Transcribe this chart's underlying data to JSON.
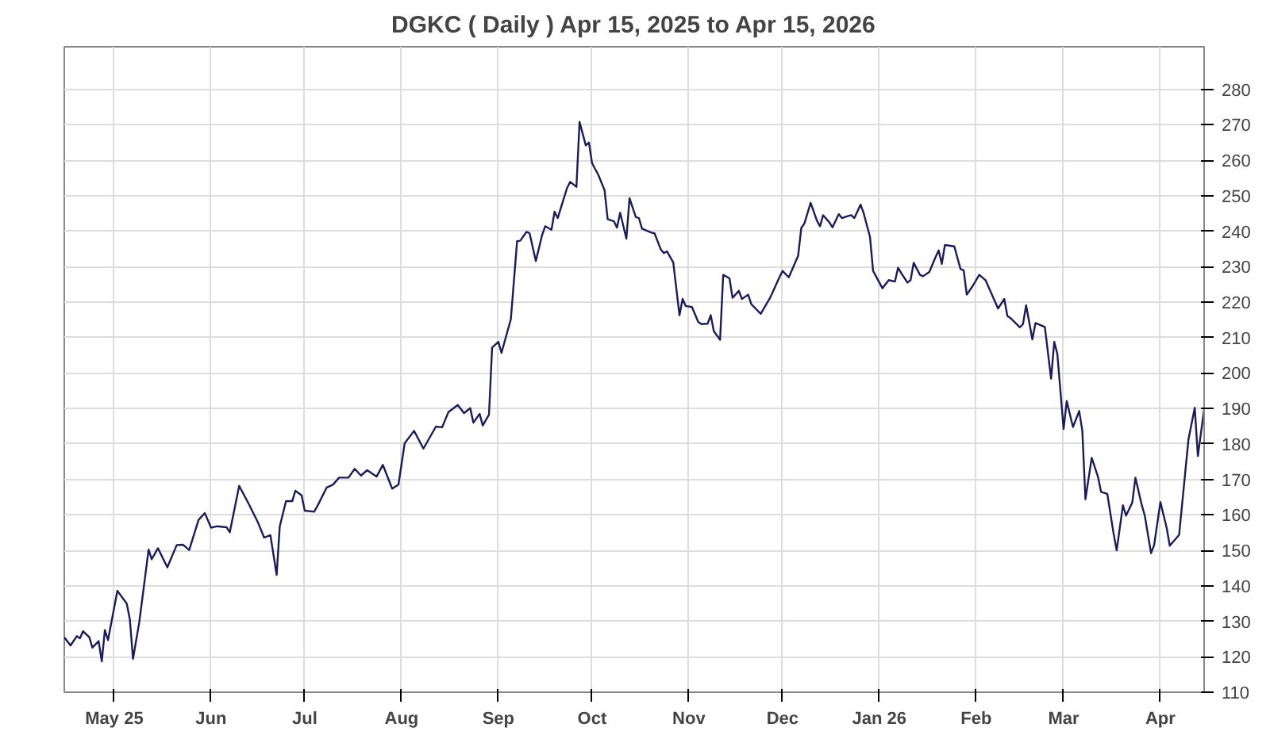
{
  "chart_data": {
    "type": "line",
    "title": "DGKC ( Daily ) Apr 15, 2025 to Apr 15, 2026",
    "x": [
      "2025-04-15",
      "2025-04-17",
      "2025-04-19",
      "2025-04-20",
      "2025-04-21",
      "2025-04-23",
      "2025-04-24",
      "2025-04-26",
      "2025-04-27",
      "2025-04-28",
      "2025-04-29",
      "2025-05-02",
      "2025-05-05",
      "2025-05-06",
      "2025-05-07",
      "2025-05-09",
      "2025-05-12",
      "2025-05-13",
      "2025-05-15",
      "2025-05-18",
      "2025-05-21",
      "2025-05-23",
      "2025-05-25",
      "2025-05-28",
      "2025-05-30",
      "2025-06-01",
      "2025-06-03",
      "2025-06-06",
      "2025-06-07",
      "2025-06-10",
      "2025-06-13",
      "2025-06-16",
      "2025-06-18",
      "2025-06-20",
      "2025-06-22",
      "2025-06-23",
      "2025-06-25",
      "2025-06-27",
      "2025-06-28",
      "2025-06-30",
      "2025-07-01",
      "2025-07-04",
      "2025-07-05",
      "2025-07-08",
      "2025-07-10",
      "2025-07-12",
      "2025-07-15",
      "2025-07-17",
      "2025-07-19",
      "2025-07-21",
      "2025-07-24",
      "2025-07-26",
      "2025-07-29",
      "2025-07-31",
      "2025-08-02",
      "2025-08-05",
      "2025-08-08",
      "2025-08-12",
      "2025-08-14",
      "2025-08-16",
      "2025-08-19",
      "2025-08-21",
      "2025-08-23",
      "2025-08-24",
      "2025-08-26",
      "2025-08-27",
      "2025-08-29",
      "2025-08-30",
      "2025-09-01",
      "2025-09-02",
      "2025-09-05",
      "2025-09-07",
      "2025-09-08",
      "2025-09-10",
      "2025-09-11",
      "2025-09-13",
      "2025-09-15",
      "2025-09-16",
      "2025-09-18",
      "2025-09-19",
      "2025-09-20",
      "2025-09-23",
      "2025-09-24",
      "2025-09-26",
      "2025-09-27",
      "2025-09-29",
      "2025-09-30",
      "2025-10-01",
      "2025-10-03",
      "2025-10-05",
      "2025-10-06",
      "2025-10-08",
      "2025-10-09",
      "2025-10-10",
      "2025-10-12",
      "2025-10-13",
      "2025-10-15",
      "2025-10-16",
      "2025-10-17",
      "2025-10-20",
      "2025-10-21",
      "2025-10-23",
      "2025-10-24",
      "2025-10-25",
      "2025-10-27",
      "2025-10-29",
      "2025-10-30",
      "2025-10-31",
      "2025-11-02",
      "2025-11-04",
      "2025-11-05",
      "2025-11-07",
      "2025-11-08",
      "2025-11-09",
      "2025-11-11",
      "2025-11-12",
      "2025-11-14",
      "2025-11-15",
      "2025-11-17",
      "2025-11-18",
      "2025-11-20",
      "2025-11-21",
      "2025-11-24",
      "2025-11-27",
      "2025-11-30",
      "2025-12-01",
      "2025-12-03",
      "2025-12-06",
      "2025-12-07",
      "2025-12-08",
      "2025-12-10",
      "2025-12-12",
      "2025-12-13",
      "2025-12-14",
      "2025-12-16",
      "2025-12-17",
      "2025-12-19",
      "2025-12-20",
      "2025-12-22",
      "2025-12-23",
      "2025-12-24",
      "2025-12-26",
      "2025-12-27",
      "2025-12-29",
      "2025-12-30",
      "2026-01-02",
      "2026-01-04",
      "2026-01-06",
      "2026-01-07",
      "2026-01-08",
      "2026-01-10",
      "2026-01-11",
      "2026-01-12",
      "2026-01-14",
      "2026-01-15",
      "2026-01-17",
      "2026-01-19",
      "2026-01-20",
      "2026-01-21",
      "2026-01-22",
      "2026-01-25",
      "2026-01-27",
      "2026-01-28",
      "2026-01-29",
      "2026-01-31",
      "2026-02-02",
      "2026-02-04",
      "2026-02-08",
      "2026-02-10",
      "2026-02-11",
      "2026-02-12",
      "2026-02-15",
      "2026-02-16",
      "2026-02-17",
      "2026-02-19",
      "2026-02-20",
      "2026-02-23",
      "2026-02-25",
      "2026-02-26",
      "2026-02-27",
      "2026-03-01",
      "2026-03-02",
      "2026-03-04",
      "2026-03-06",
      "2026-03-07",
      "2026-03-08",
      "2026-03-10",
      "2026-03-12",
      "2026-03-13",
      "2026-03-15",
      "2026-03-17",
      "2026-03-18",
      "2026-03-20",
      "2026-03-21",
      "2026-03-23",
      "2026-03-24",
      "2026-03-26",
      "2026-03-27",
      "2026-03-29",
      "2026-03-30",
      "2026-04-01",
      "2026-04-03",
      "2026-04-04",
      "2026-04-07",
      "2026-04-10",
      "2026-04-12",
      "2026-04-13",
      "2026-04-15"
    ],
    "series": [
      {
        "color": "#1c1c5c",
        "values": [
          125.5,
          123.2,
          125.8,
          125.2,
          127.2,
          125.5,
          122.6,
          124.4,
          118.7,
          127.5,
          124.7,
          138.6,
          135,
          130.5,
          119.4,
          129.7,
          150.2,
          147.5,
          150.6,
          145.2,
          151.5,
          151.6,
          150.1,
          158.6,
          160.5,
          156.4,
          156.8,
          156.5,
          155.1,
          168.2,
          163.2,
          157.9,
          153.6,
          154.3,
          143.1,
          156.8,
          163.9,
          163.9,
          166.8,
          165.5,
          161.2,
          160.9,
          162.4,
          167.7,
          168.5,
          170.5,
          170.5,
          173,
          171.1,
          172.6,
          170.8,
          174.1,
          167.4,
          168.5,
          180.2,
          183.7,
          178.7,
          184.9,
          184.7,
          189,
          191,
          188.7,
          190.1,
          186,
          188.5,
          185.2,
          188.3,
          207.2,
          208.8,
          205.7,
          215.2,
          237.2,
          237.3,
          239.8,
          239.4,
          231.6,
          238.9,
          241.4,
          240.4,
          245.5,
          243.7,
          252.2,
          253.9,
          252.5,
          270.8,
          264.2,
          265,
          259.2,
          255.9,
          251.6,
          243.4,
          242.8,
          241,
          245.2,
          237.9,
          249.3,
          244,
          243.7,
          240.7,
          239.6,
          239.4,
          234.9,
          233.8,
          234.3,
          231.2,
          216.3,
          220.9,
          218.9,
          218.6,
          214.4,
          213.8,
          213.9,
          216.3,
          211.8,
          209.4,
          227.7,
          226.7,
          221.2,
          223.2,
          220.9,
          222.1,
          219.4,
          216.7,
          221.2,
          227,
          228.8,
          227,
          233.1,
          240.9,
          242.2,
          248,
          243,
          241.4,
          244.5,
          242.5,
          241.1,
          244.8,
          243.7,
          244.3,
          244.5,
          243.7,
          247.5,
          245,
          238.4,
          228.8,
          223.9,
          226.2,
          225.8,
          229.7,
          228.2,
          225.5,
          226.2,
          231.1,
          227.7,
          227.3,
          228.5,
          232.7,
          234.6,
          230.8,
          236.1,
          235.7,
          229.3,
          229,
          222.1,
          224.7,
          227.7,
          226.2,
          218.2,
          220.9,
          216.1,
          215.5,
          212.9,
          213.8,
          219.1,
          209.5,
          214.1,
          213,
          198.4,
          208.8,
          205.4,
          184.2,
          192.1,
          184.8,
          189.3,
          183.7,
          164.4,
          176.1,
          170.8,
          166.5,
          165.9,
          154.8,
          150,
          162.7,
          159.8,
          163.5,
          170.5,
          162.9,
          159.8,
          149.2,
          151.5,
          163.6,
          156.4,
          151.3,
          154.4,
          181.4,
          190.2,
          176.6,
          189.8
        ]
      }
    ],
    "xlim": [
      "2025-04-15",
      "2026-04-15"
    ],
    "xticks": [
      {
        "value": "2025-05-01",
        "label": "May 25"
      },
      {
        "value": "2025-06-01",
        "label": "Jun"
      },
      {
        "value": "2025-07-01",
        "label": "Jul"
      },
      {
        "value": "2025-08-01",
        "label": "Aug"
      },
      {
        "value": "2025-09-01",
        "label": "Sep"
      },
      {
        "value": "2025-10-01",
        "label": "Oct"
      },
      {
        "value": "2025-11-01",
        "label": "Nov"
      },
      {
        "value": "2025-12-01",
        "label": "Dec"
      },
      {
        "value": "2026-01-01",
        "label": "Jan 26"
      },
      {
        "value": "2026-02-01",
        "label": "Feb"
      },
      {
        "value": "2026-03-01",
        "label": "Mar"
      },
      {
        "value": "2026-04-01",
        "label": "Apr"
      }
    ],
    "ylim": [
      110,
      292
    ],
    "yticks": [
      110,
      120,
      130,
      140,
      150,
      160,
      170,
      180,
      190,
      200,
      210,
      220,
      230,
      240,
      250,
      260,
      270,
      280
    ],
    "grid": true,
    "line_style": "solid"
  }
}
